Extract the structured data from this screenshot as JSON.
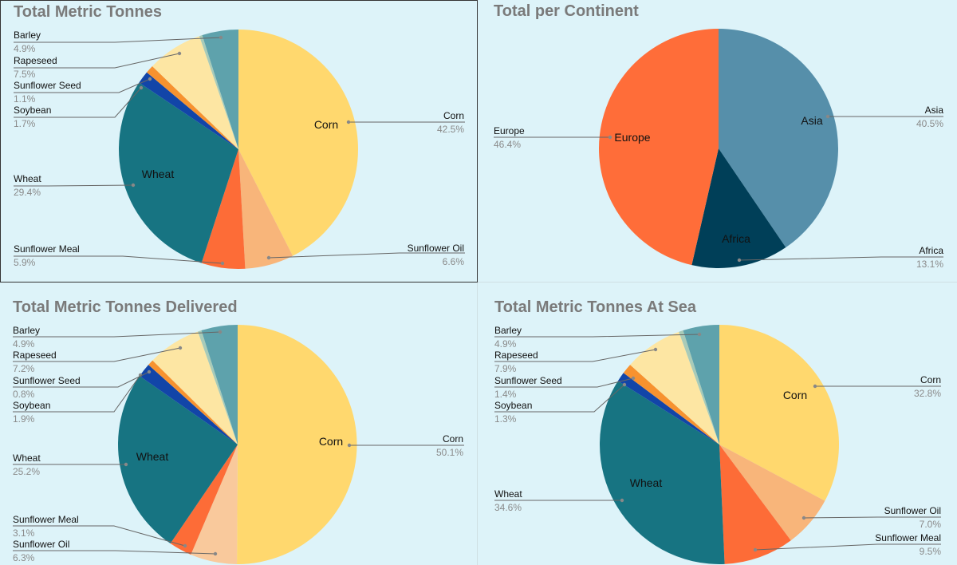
{
  "chart_data": [
    {
      "type": "pie",
      "title": "Total Metric Tonnes",
      "slices": [
        {
          "label": "Corn",
          "pct": "42.5%",
          "value": 42.5,
          "color": "#ffd86e"
        },
        {
          "label": "Sunflower Oil",
          "pct": "6.6%",
          "value": 6.6,
          "color": "#f8b57a"
        },
        {
          "label": "Sunflower Meal",
          "pct": "5.9%",
          "value": 5.9,
          "color": "#fd6c37"
        },
        {
          "label": "Wheat",
          "pct": "29.4%",
          "value": 29.4,
          "color": "#177482"
        },
        {
          "label": "Soybean",
          "pct": "1.7%",
          "value": 1.7,
          "color": "#1245a8"
        },
        {
          "label": "Sunflower Seed",
          "pct": "1.1%",
          "value": 1.1,
          "color": "#f7922f"
        },
        {
          "label": "Rapeseed",
          "pct": "7.5%",
          "value": 7.5,
          "color": "#fde6a3"
        },
        {
          "label": "",
          "value": 0.4,
          "color": "#a9cbb8"
        },
        {
          "label": "Barley",
          "pct": "4.9%",
          "value": 4.9,
          "color": "#5ea2ac"
        }
      ]
    },
    {
      "type": "pie",
      "title": "Total per Continent",
      "slices": [
        {
          "label": "Asia",
          "pct": "40.5%",
          "value": 40.5,
          "color": "#568faa"
        },
        {
          "label": "Africa",
          "pct": "13.1%",
          "value": 13.1,
          "color": "#003f58"
        },
        {
          "label": "Europe",
          "pct": "46.4%",
          "value": 46.4,
          "color": "#ff6d39"
        }
      ]
    },
    {
      "type": "pie",
      "title": "Total Metric Tonnes Delivered",
      "slices": [
        {
          "label": "Corn",
          "pct": "50.1%",
          "value": 50.1,
          "color": "#ffd86e"
        },
        {
          "label": "Sunflower Oil",
          "pct": "6.3%",
          "value": 6.3,
          "color": "#f9c99c"
        },
        {
          "label": "Sunflower Meal",
          "pct": "3.1%",
          "value": 3.1,
          "color": "#fd6c37"
        },
        {
          "label": "Wheat",
          "pct": "25.2%",
          "value": 25.2,
          "color": "#177482"
        },
        {
          "label": "Soybean",
          "pct": "1.9%",
          "value": 1.9,
          "color": "#1245a8"
        },
        {
          "label": "Sunflower Seed",
          "pct": "0.8%",
          "value": 0.8,
          "color": "#f7922f"
        },
        {
          "label": "Rapeseed",
          "pct": "7.2%",
          "value": 7.2,
          "color": "#fde6a3"
        },
        {
          "label": "",
          "value": 0.5,
          "color": "#a9cbb8"
        },
        {
          "label": "Barley",
          "pct": "4.9%",
          "value": 4.9,
          "color": "#5ea2ac"
        }
      ]
    },
    {
      "type": "pie",
      "title": "Total Metric Tonnes At Sea",
      "slices": [
        {
          "label": "Corn",
          "pct": "32.8%",
          "value": 32.8,
          "color": "#ffd86e"
        },
        {
          "label": "Sunflower Oil",
          "pct": "7.0%",
          "value": 7.0,
          "color": "#f8b57a"
        },
        {
          "label": "Sunflower Meal",
          "pct": "9.5%",
          "value": 9.5,
          "color": "#fd6c37"
        },
        {
          "label": "Wheat",
          "pct": "34.6%",
          "value": 34.6,
          "color": "#177482"
        },
        {
          "label": "Soybean",
          "pct": "1.3%",
          "value": 1.3,
          "color": "#1245a8"
        },
        {
          "label": "Sunflower Seed",
          "pct": "1.4%",
          "value": 1.4,
          "color": "#f7922f"
        },
        {
          "label": "Rapeseed",
          "pct": "7.9%",
          "value": 7.9,
          "color": "#fde6a3"
        },
        {
          "label": "",
          "value": 0.6,
          "color": "#a9cbb8"
        },
        {
          "label": "Barley",
          "pct": "4.9%",
          "value": 4.9,
          "color": "#5ea2ac"
        }
      ]
    }
  ]
}
